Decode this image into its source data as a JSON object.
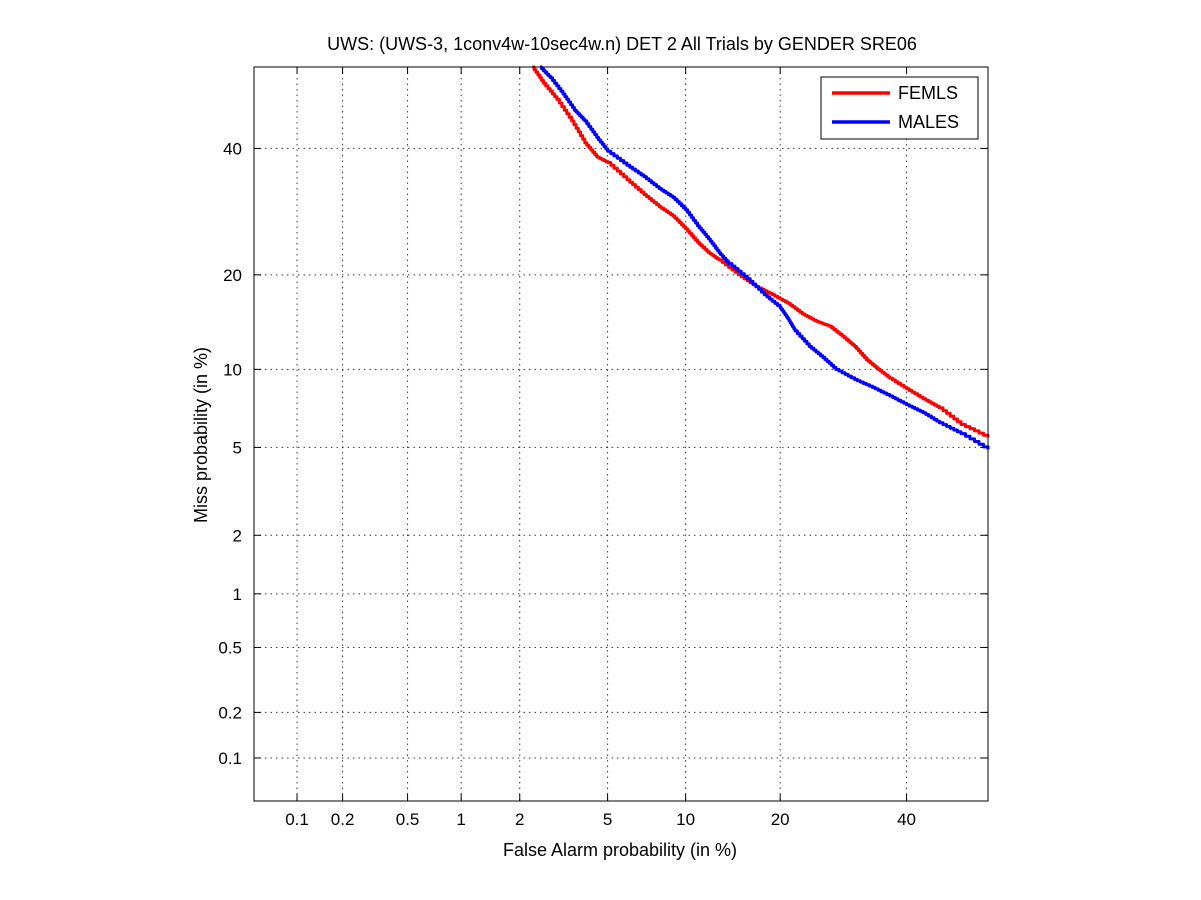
{
  "chart_data": {
    "type": "line",
    "title": "UWS: (UWS-3, 1conv4w-10sec4w.n) DET 2 All Trials by GENDER SRE06",
    "xlabel": "False Alarm probability (in %)",
    "ylabel": "Miss probability (in %)",
    "x_scale": "normal-deviate (probit)",
    "y_scale": "normal-deviate (probit)",
    "xlim": [
      0.05,
      55
    ],
    "ylim": [
      0.05,
      55
    ],
    "x_ticks": [
      "0.1",
      "0.2",
      "0.5",
      "1",
      "2",
      "5",
      "10",
      "20",
      "40"
    ],
    "y_ticks": [
      "0.1",
      "0.2",
      "0.5",
      "1",
      "2",
      "5",
      "10",
      "20",
      "40"
    ],
    "grid": true,
    "legend_position": "top-right",
    "series": [
      {
        "name": "FEMLS",
        "color": "#ff0000",
        "points": [
          [
            2.3,
            55
          ],
          [
            2.6,
            52
          ],
          [
            3.0,
            49
          ],
          [
            3.5,
            45
          ],
          [
            4.0,
            41
          ],
          [
            4.5,
            38.5
          ],
          [
            5.0,
            37.5
          ],
          [
            6.0,
            34.5
          ],
          [
            7.0,
            32
          ],
          [
            8.0,
            30
          ],
          [
            9.0,
            28.5
          ],
          [
            10.0,
            26.5
          ],
          [
            11.0,
            24.5
          ],
          [
            12.0,
            23
          ],
          [
            13.0,
            22
          ],
          [
            15.0,
            20
          ],
          [
            17.0,
            18.5
          ],
          [
            19.0,
            17.5
          ],
          [
            21.0,
            16.5
          ],
          [
            23.0,
            15.3
          ],
          [
            25.0,
            14.5
          ],
          [
            27.0,
            14
          ],
          [
            29.0,
            13
          ],
          [
            31.0,
            12
          ],
          [
            33.0,
            10.8
          ],
          [
            35.0,
            10
          ],
          [
            37.0,
            9.3
          ],
          [
            40.0,
            8.5
          ],
          [
            43.0,
            7.8
          ],
          [
            46.0,
            7.2
          ],
          [
            50.0,
            6.2
          ],
          [
            55.0,
            5.5
          ]
        ]
      },
      {
        "name": "MALES",
        "color": "#0000ff",
        "points": [
          [
            2.5,
            55
          ],
          [
            2.8,
            53
          ],
          [
            3.2,
            50
          ],
          [
            3.6,
            47
          ],
          [
            4.0,
            45
          ],
          [
            4.5,
            42
          ],
          [
            5.0,
            39.5
          ],
          [
            6.0,
            37
          ],
          [
            7.0,
            35
          ],
          [
            8.0,
            33
          ],
          [
            9.0,
            31.5
          ],
          [
            10.0,
            29.5
          ],
          [
            11.0,
            27
          ],
          [
            12.0,
            25
          ],
          [
            13.0,
            23
          ],
          [
            14.0,
            21.5
          ],
          [
            16.0,
            19.5
          ],
          [
            18.0,
            17.5
          ],
          [
            20.0,
            16
          ],
          [
            21.0,
            14.8
          ],
          [
            22.0,
            13.5
          ],
          [
            24.0,
            12
          ],
          [
            26.0,
            11
          ],
          [
            28.0,
            10
          ],
          [
            31.0,
            9.2
          ],
          [
            34.0,
            8.6
          ],
          [
            37.0,
            8
          ],
          [
            40.0,
            7.4
          ],
          [
            43.0,
            6.9
          ],
          [
            46.0,
            6.3
          ],
          [
            50.0,
            5.7
          ],
          [
            55.0,
            4.9
          ]
        ]
      }
    ]
  }
}
